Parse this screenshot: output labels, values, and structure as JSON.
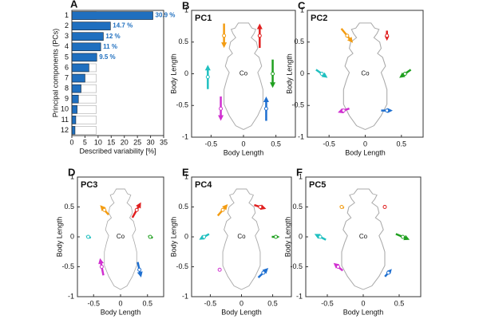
{
  "chart_data": [
    {
      "type": "hbar",
      "label": "A",
      "ylabel": "Principal components (PCs)",
      "xlabel": "Described variability [%]",
      "categories": [
        "1",
        "2",
        "3",
        "4",
        "5",
        "6",
        "7",
        "8",
        "9",
        "10",
        "11",
        "12"
      ],
      "series": [
        {
          "color": "#ffffff",
          "values": [
            9.3,
            9.3,
            9.3,
            9.3,
            9.3,
            9.3,
            9.3,
            9.3,
            9.3,
            9.3,
            9.3,
            9.3
          ]
        },
        {
          "color": "#1f6fbf",
          "values": [
            30.9,
            14.7,
            12,
            11,
            9.5,
            6.5,
            5,
            3.5,
            2.5,
            2,
            1.5,
            1.2
          ],
          "value_labels": [
            "30.9 %",
            "14.7 %",
            "12 %",
            "11 %",
            "9.5 %",
            null,
            null,
            null,
            null,
            null,
            null,
            null
          ]
        }
      ],
      "xlim": [
        0,
        35
      ],
      "xticks": [
        0,
        5,
        10,
        15,
        20,
        25,
        30,
        35
      ]
    },
    {
      "type": "quiver",
      "label": "B",
      "title": "PC1",
      "annotation": "Co",
      "xlabel": "Body Length",
      "ylabel": "Body Length",
      "xlim": [
        -0.8,
        0.8
      ],
      "ylim": [
        -1,
        1
      ],
      "xticks": [
        -0.5,
        0,
        0.5
      ],
      "yticks": [
        -1,
        -0.5,
        0,
        0.5,
        1
      ],
      "arrows": {
        "color": [
          "#f39c12",
          "#e02020",
          "#20c0c0",
          "#20a020",
          "#d030d0",
          "#1e6fd0"
        ],
        "x": [
          -0.3,
          0.25,
          -0.55,
          0.45,
          -0.35,
          0.35
        ],
        "y": [
          0.6,
          0.6,
          -0.05,
          0,
          -0.55,
          -0.55
        ],
        "dx": [
          0,
          0,
          0,
          0,
          0,
          0
        ],
        "dy": [
          -0.12,
          0.12,
          0.12,
          -0.14,
          -0.12,
          0.12
        ]
      }
    },
    {
      "type": "quiver",
      "label": "C",
      "title": "PC2",
      "annotation": "Co",
      "xlabel": "Body Length",
      "ylabel": "Body Length",
      "xlim": [
        -0.8,
        0.8
      ],
      "ylim": [
        -1,
        1
      ],
      "xticks": [
        -0.5,
        0,
        0.5
      ],
      "yticks": [
        -1,
        -0.5,
        0,
        0.5,
        1
      ],
      "arrows": {
        "color": [
          "#f39c12",
          "#e02020",
          "#20c0c0",
          "#20a020",
          "#d030d0",
          "#1e6fd0"
        ],
        "x": [
          -0.25,
          0.3,
          -0.6,
          0.55,
          -0.3,
          0.3
        ],
        "y": [
          0.6,
          0.6,
          0,
          0,
          -0.58,
          -0.58
        ],
        "dx": [
          0.05,
          0,
          0.05,
          -0.05,
          -0.05,
          0.05
        ],
        "dy": [
          -0.07,
          -0.05,
          -0.04,
          -0.04,
          -0.02,
          0
        ]
      }
    },
    {
      "type": "quiver",
      "label": "D",
      "title": "PC3",
      "annotation": "Co",
      "xlabel": "Body Length",
      "ylabel": "Body Length",
      "xlim": [
        -0.8,
        0.8
      ],
      "ylim": [
        -1,
        1
      ],
      "xticks": [
        -0.5,
        0,
        0.5
      ],
      "yticks": [
        -1,
        -0.5,
        0,
        0.5,
        1
      ],
      "arrows": {
        "color": [
          "#f39c12",
          "#e02020",
          "#20c0c0",
          "#20a020",
          "#d030d0",
          "#1e6fd0"
        ],
        "x": [
          -0.3,
          0.3,
          -0.6,
          0.55,
          -0.35,
          0.35
        ],
        "y": [
          0.45,
          0.45,
          0,
          0,
          -0.5,
          -0.55
        ],
        "dx": [
          -0.05,
          0.05,
          -0.03,
          -0.03,
          -0.02,
          0.02
        ],
        "dy": [
          0.05,
          0.08,
          0.01,
          0.01,
          0.09,
          -0.08
        ]
      }
    },
    {
      "type": "quiver",
      "label": "E",
      "title": "PC4",
      "annotation": "Co",
      "xlabel": "Body Length",
      "ylabel": "Body Length",
      "xlim": [
        -0.8,
        0.8
      ],
      "ylim": [
        -1,
        1
      ],
      "xticks": [
        -0.5,
        0,
        0.5
      ],
      "yticks": [
        -1,
        -0.5,
        0,
        0.5,
        1
      ],
      "arrows": {
        "color": [
          "#f39c12",
          "#e02020",
          "#20c0c0",
          "#20a020",
          "#d030d0",
          "#1e6fd0"
        ],
        "x": [
          -0.3,
          0.3,
          -0.6,
          0.55,
          -0.35,
          0.35
        ],
        "y": [
          0.45,
          0.5,
          0,
          0,
          -0.55,
          -0.6
        ],
        "dx": [
          0.05,
          0.06,
          -0.05,
          0.04,
          0.01,
          0.05
        ],
        "dy": [
          0.06,
          -0.02,
          -0.03,
          0,
          0.01,
          0.05
        ]
      }
    },
    {
      "type": "quiver",
      "label": "F",
      "title": "PC5",
      "annotation": "Co",
      "xlabel": "Body Length",
      "ylabel": "Body Length",
      "xlim": [
        -0.8,
        0.8
      ],
      "ylim": [
        -1,
        1
      ],
      "xticks": [
        -0.5,
        0,
        0.5
      ],
      "yticks": [
        -1,
        -0.5,
        0,
        0.5,
        1
      ],
      "arrows": {
        "color": [
          "#f39c12",
          "#e02020",
          "#20c0c0",
          "#20a020",
          "#d030d0",
          "#1e6fd0"
        ],
        "x": [
          -0.3,
          0.3,
          -0.6,
          0.55,
          -0.35,
          0.35
        ],
        "y": [
          0.5,
          0.5,
          0,
          0,
          -0.5,
          -0.6
        ],
        "dx": [
          -0.02,
          0,
          -0.05,
          0.06,
          -0.04,
          0.03
        ],
        "dy": [
          0.01,
          -0.02,
          0.03,
          -0.03,
          0.04,
          0.04
        ]
      }
    }
  ]
}
